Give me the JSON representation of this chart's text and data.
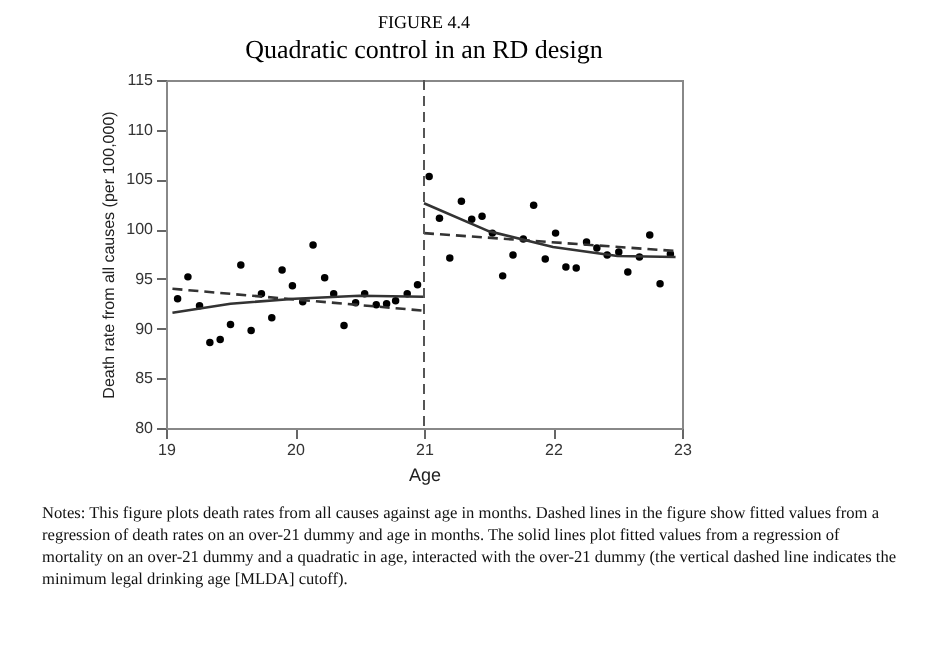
{
  "chart_data": {
    "type": "scatter",
    "title": "FIGURE 4.4",
    "subtitle": "Quadratic control in an RD design",
    "xlabel": "Age",
    "ylabel": "Death rate from all causes (per 100,000)",
    "xlim": [
      19,
      23
    ],
    "xticks": [
      19,
      20,
      21,
      22,
      23
    ],
    "ylim": [
      80,
      115
    ],
    "yticks": [
      80,
      85,
      90,
      95,
      100,
      105,
      110,
      115
    ],
    "grid": false,
    "legend": false,
    "series": [
      {
        "color": "#000000",
        "marker": "circle",
        "x": [
          19.09,
          19.17,
          19.26,
          19.34,
          19.42,
          19.5,
          19.58,
          19.66,
          19.74,
          19.82,
          19.9,
          19.98,
          20.06,
          20.14,
          20.23,
          20.3,
          20.38,
          20.47,
          20.54,
          20.63,
          20.71,
          20.78,
          20.87,
          20.95,
          21.04,
          21.12,
          21.2,
          21.29,
          21.37,
          21.45,
          21.53,
          21.61,
          21.69,
          21.77,
          21.85,
          21.94,
          22.02,
          22.1,
          22.18,
          22.26,
          22.34,
          22.42,
          22.51,
          22.58,
          22.67,
          22.75,
          22.83,
          22.91
        ],
        "values": [
          93.0,
          95.2,
          92.3,
          88.6,
          88.9,
          90.4,
          96.4,
          89.8,
          93.5,
          91.1,
          95.9,
          94.3,
          92.7,
          98.4,
          95.1,
          93.5,
          90.3,
          92.6,
          93.5,
          92.4,
          92.5,
          92.8,
          93.5,
          94.4,
          105.3,
          101.1,
          97.1,
          102.8,
          101.0,
          101.3,
          99.6,
          95.3,
          97.4,
          99.0,
          102.4,
          97.0,
          99.6,
          96.2,
          96.1,
          98.7,
          98.1,
          97.4,
          97.7,
          95.7,
          97.2,
          99.4,
          94.5,
          97.5
        ]
      },
      {
        "type": "line",
        "marker": "none",
        "line_style": "dashed",
        "color": "#333333",
        "x": [
          19.05,
          21.0
        ],
        "values": [
          94.0,
          91.8
        ]
      },
      {
        "type": "line",
        "marker": "none",
        "line_style": "dashed",
        "color": "#333333",
        "x": [
          21.0,
          22.95
        ],
        "values": [
          99.6,
          97.8
        ]
      },
      {
        "type": "line",
        "marker": "none",
        "line_style": "solid",
        "color": "#333333",
        "x": [
          19.05,
          19.5,
          20.0,
          20.5,
          21.0
        ],
        "values": [
          91.6,
          92.5,
          93.0,
          93.3,
          93.2
        ]
      },
      {
        "type": "line",
        "marker": "none",
        "line_style": "solid",
        "color": "#333333",
        "x": [
          21.0,
          21.5,
          22.0,
          22.5,
          22.95
        ],
        "values": [
          102.6,
          99.8,
          98.2,
          97.3,
          97.2
        ]
      }
    ],
    "ref_lines": [
      {
        "axis": "x",
        "value": 21,
        "line_style": "dashed",
        "color": "#555555"
      }
    ],
    "annotations": [
      "Notes: This figure plots death rates from all causes against age in months. Dashed lines in the figure show fitted values from a regression of death rates on an over-21 dummy and age in months. The solid lines plot fitted values from a regression of mortality on an over-21 dummy and a quadratic in age, interacted with the over-21 dummy (the vertical dashed line indicates the minimum legal drinking age [MLDA] cutoff)."
    ]
  }
}
